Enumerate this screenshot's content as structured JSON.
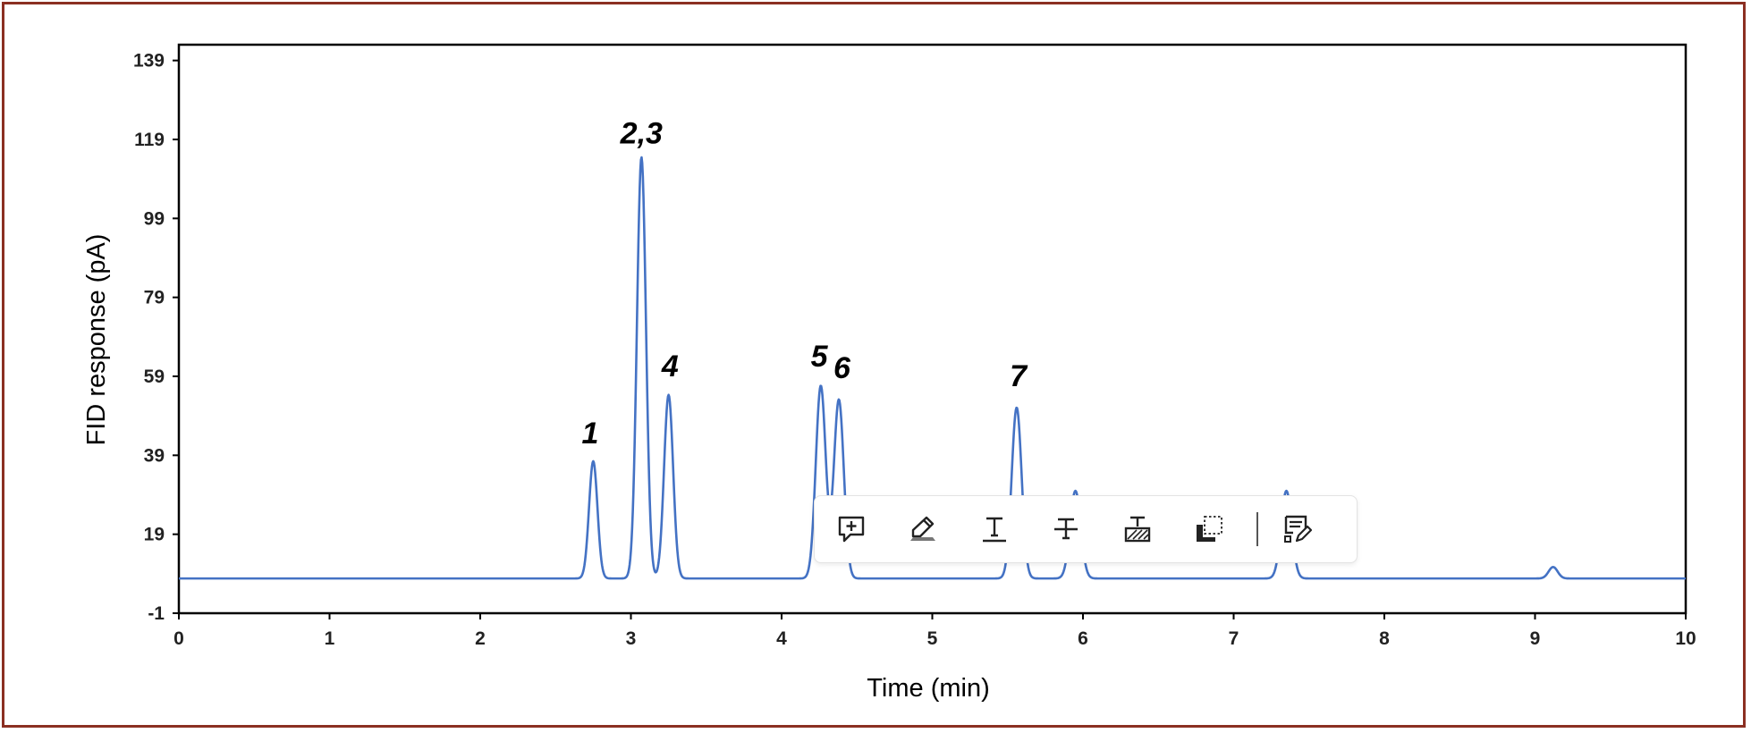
{
  "chart_data": {
    "type": "line",
    "xlabel": "Time (min)",
    "ylabel": "FID response (pA)",
    "xlim": [
      0,
      10
    ],
    "ylim": [
      -1,
      143
    ],
    "x_ticks": [
      "0",
      "1",
      "2",
      "3",
      "4",
      "5",
      "6",
      "7",
      "8",
      "9",
      "10"
    ],
    "y_ticks": [
      "-1",
      "19",
      "39",
      "59",
      "79",
      "99",
      "119",
      "139"
    ],
    "grid": false,
    "line_color": "#4472c4",
    "baseline": 7.8,
    "peaks": [
      {
        "label": "1",
        "x": 2.75,
        "y": 37.5,
        "width": 0.028
      },
      {
        "label": "2,3",
        "x": 3.07,
        "y": 114.5,
        "width": 0.03
      },
      {
        "label": "4",
        "x": 3.25,
        "y": 54.3,
        "width": 0.03
      },
      {
        "label": "5",
        "x": 4.26,
        "y": 56.6,
        "width": 0.033
      },
      {
        "label": "6",
        "x": 4.38,
        "y": 53.1,
        "width": 0.033
      },
      {
        "label": "7",
        "x": 5.56,
        "y": 51.1,
        "width": 0.033
      },
      {
        "label": "",
        "x": 5.95,
        "y": 30.0,
        "width": 0.035
      },
      {
        "label": "",
        "x": 7.35,
        "y": 30.0,
        "width": 0.035
      },
      {
        "label": "",
        "x": 9.12,
        "y": 10.7,
        "width": 0.03
      }
    ],
    "annotations": [
      {
        "text": "1",
        "x": 2.73,
        "y": 42
      },
      {
        "text": "2,3",
        "x": 3.07,
        "y": 118
      },
      {
        "text": "4",
        "x": 3.26,
        "y": 59
      },
      {
        "text": "5",
        "x": 4.25,
        "y": 61.5
      },
      {
        "text": "6",
        "x": 4.4,
        "y": 58.5
      },
      {
        "text": "7",
        "x": 5.57,
        "y": 56.5
      }
    ]
  },
  "toolbar": {
    "icons": [
      "comment-add-icon",
      "highlight-icon",
      "underline-icon",
      "strikethrough-icon",
      "replace-text-icon",
      "area-highlight-icon",
      "edit-document-icon"
    ]
  },
  "colors": {
    "frame": "#8b2f22",
    "line": "#4472c4",
    "axis": "#000000"
  }
}
